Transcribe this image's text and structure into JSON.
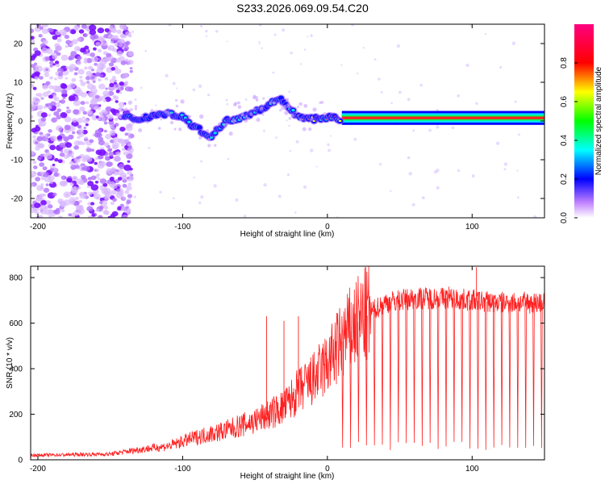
{
  "title": "S233.2026.069.09.54.C20",
  "chart_data": [
    {
      "type": "heatmap",
      "name": "spectrogram",
      "xlabel": "Height of straight line (km)",
      "ylabel": "Frequency (Hz)",
      "xlim": [
        -205,
        150
      ],
      "ylim": [
        -25,
        25
      ],
      "xticks": [
        -200,
        -100,
        0,
        100
      ],
      "yticks": [
        -20,
        -10,
        0,
        10,
        20
      ],
      "colorbar": {
        "label": "Normalized spectral amplitude",
        "range": [
          0,
          1
        ],
        "ticks": [
          "0.0",
          "0.2",
          "0.4",
          "0.6",
          "0.8"
        ]
      },
      "noise_region_km": [
        -205,
        -140
      ],
      "signal_track": {
        "height_km": [
          -140,
          -130,
          -120,
          -110,
          -100,
          -90,
          -80,
          -70,
          -60,
          -50,
          -40,
          -35,
          -30,
          -25,
          -20,
          -10,
          0,
          10,
          20,
          40,
          60,
          85,
          100,
          150
        ],
        "frequency_hz": [
          1,
          0.5,
          1.5,
          2,
          1,
          -2,
          -4,
          0,
          1,
          2.5,
          4,
          6,
          5,
          3,
          1,
          0.5,
          1,
          0.5,
          0.8,
          0.8,
          0.8,
          0.5,
          0.8,
          0.8
        ],
        "steady_from_km": 10
      }
    },
    {
      "type": "line",
      "name": "snr",
      "xlabel": "Height of straight line (km)",
      "ylabel": "SNR (10 * v/v)",
      "xlim": [
        -205,
        150
      ],
      "ylim": [
        0,
        850
      ],
      "xticks": [
        -200,
        -100,
        0,
        100
      ],
      "yticks": [
        0,
        200,
        400,
        600,
        800
      ],
      "color": "#ff2020",
      "envelope": {
        "height_km": [
          -205,
          -150,
          -130,
          -110,
          -90,
          -70,
          -50,
          -30,
          -20,
          -10,
          0,
          10,
          20,
          30,
          40,
          60,
          80,
          100,
          120,
          150
        ],
        "snr": [
          20,
          25,
          45,
          60,
          100,
          130,
          170,
          230,
          300,
          350,
          420,
          520,
          600,
          650,
          690,
          710,
          710,
          700,
          690,
          690
        ]
      },
      "spike_heights_km": [
        -42,
        -30,
        -20,
        84,
        103
      ],
      "dropout_start_km": 10
    }
  ]
}
